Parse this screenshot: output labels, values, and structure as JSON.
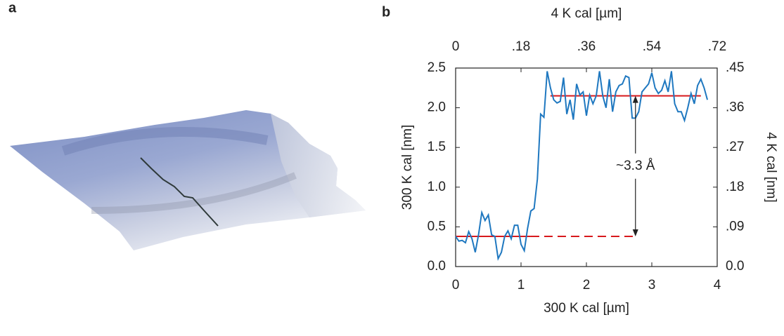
{
  "panel_a_label": "a",
  "chart_data": {
    "type": "line",
    "panel_label": "b",
    "xlabel": "300 K cal [µm]",
    "ylabel": "300 K cal [nm]",
    "x2label": "4 K cal [µm]",
    "y2label": "4 K cal [nm]",
    "xlim": [
      0,
      4
    ],
    "xticks": [
      0,
      1,
      2,
      3,
      4
    ],
    "x2lim": [
      0,
      0.72
    ],
    "x2ticks": [
      0,
      {
        "value": 0.18,
        "label": ".18"
      },
      {
        "value": 0.36,
        "label": ".36"
      },
      {
        "value": 0.54,
        "label": ".54"
      },
      {
        "value": 0.72,
        "label": ".72"
      }
    ],
    "ylim": [
      0,
      2.5
    ],
    "yticks": [
      {
        "value": 0,
        "label": "0.0"
      },
      0.5,
      {
        "value": 1,
        "label": "1.0"
      },
      1.5,
      {
        "value": 2,
        "label": "2.0"
      },
      2.5
    ],
    "y2lim": [
      0,
      0.45
    ],
    "y2ticks": [
      {
        "value": 0,
        "label": "0.0"
      },
      {
        "value": 0.09,
        "label": ".09"
      },
      {
        "value": 0.18,
        "label": ".18"
      },
      {
        "value": 0.27,
        "label": ".27"
      },
      {
        "value": 0.36,
        "label": ".36"
      },
      {
        "value": 0.45,
        "label": ".45"
      }
    ],
    "grid": false,
    "x": [
      0,
      0.05,
      0.1,
      0.15,
      0.2,
      0.25,
      0.3,
      0.35,
      0.4,
      0.45,
      0.5,
      0.55,
      0.6,
      0.65,
      0.7,
      0.75,
      0.8,
      0.85,
      0.9,
      0.95,
      1,
      1.05,
      1.1,
      1.15,
      1.2,
      1.25,
      1.3,
      1.35,
      1.4,
      1.45,
      1.5,
      1.55,
      1.6,
      1.65,
      1.7,
      1.75,
      1.8,
      1.85,
      1.9,
      1.95,
      2,
      2.05,
      2.1,
      2.15,
      2.2,
      2.25,
      2.3,
      2.35,
      2.4,
      2.45,
      2.5,
      2.55,
      2.6,
      2.65,
      2.7,
      2.75,
      2.8,
      2.85,
      2.9,
      2.95,
      3,
      3.05,
      3.1,
      3.15,
      3.2,
      3.25,
      3.3,
      3.35,
      3.4,
      3.45,
      3.5,
      3.55,
      3.6,
      3.65,
      3.7,
      3.75,
      3.8,
      3.85
    ],
    "series": [
      {
        "color": "#1f78c0",
        "values": [
          0.38,
          0.32,
          0.33,
          0.3,
          0.44,
          0.35,
          0.18,
          0.4,
          0.68,
          0.58,
          0.65,
          0.4,
          0.38,
          0.1,
          0.18,
          0.38,
          0.45,
          0.35,
          0.52,
          0.52,
          0.28,
          0.2,
          0.48,
          0.7,
          0.73,
          1.1,
          1.92,
          1.88,
          2.46,
          2.25,
          2.1,
          2.06,
          2.08,
          2.38,
          1.92,
          2.1,
          1.85,
          2.3,
          2.16,
          2.2,
          1.9,
          2.16,
          2.05,
          2.15,
          2.46,
          2.15,
          2,
          2.36,
          1.95,
          2.2,
          2.28,
          2.3,
          2.4,
          2.38,
          1.87,
          1.87,
          1.95,
          2.2,
          2.25,
          2.3,
          2.44,
          2.25,
          2.18,
          2.22,
          2.34,
          2.2,
          2.46,
          2.05,
          1.95,
          1.95,
          1.84,
          2,
          2.18,
          2.05,
          2.28,
          2.36,
          2.25,
          2.1
        ]
      }
    ],
    "reference_color": "#d7191c",
    "reference_lines": [
      {
        "y": 0.38,
        "x": [
          0,
          1.15
        ],
        "style": "solid"
      },
      {
        "y": 0.38,
        "x": [
          1.15,
          2.75
        ],
        "style": "dashed"
      },
      {
        "y": 2.15,
        "x": [
          1.45,
          3.75
        ],
        "style": "solid"
      }
    ],
    "annotation": {
      "text": "~3.3 Å",
      "x": 2.75,
      "y": [
        0.38,
        2.15
      ]
    }
  }
}
